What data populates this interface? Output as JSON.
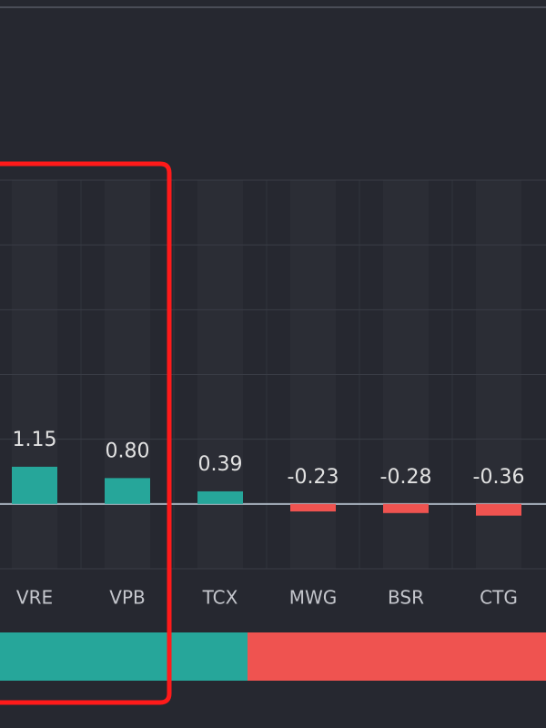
{
  "chart_data": {
    "type": "bar",
    "categories": [
      "VRE",
      "VPB",
      "TCX",
      "MWG",
      "BSR",
      "CTG"
    ],
    "values": [
      1.15,
      0.8,
      0.39,
      -0.23,
      -0.28,
      -0.36
    ],
    "value_labels": [
      "1.15",
      "0.80",
      "0.39",
      "-0.23",
      "-0.28",
      "-0.36"
    ],
    "positive_color": "#26a69a",
    "negative_color": "#ef5350",
    "ylim": [
      -2,
      10
    ],
    "yticks": [
      -2,
      0,
      2,
      4,
      6,
      8,
      10
    ],
    "grid": true
  }
}
